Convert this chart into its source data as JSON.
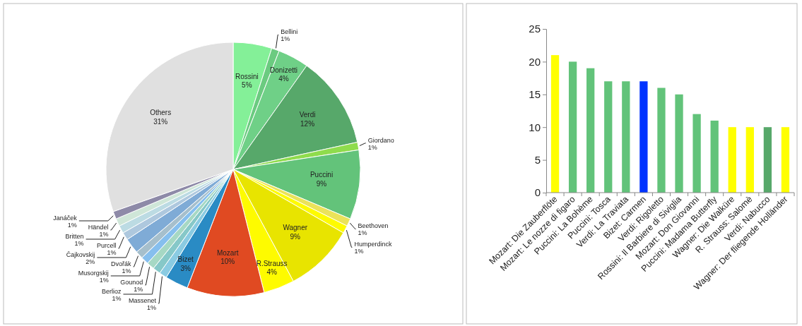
{
  "chart_data": [
    {
      "type": "pie",
      "categories": [
        "Rossini",
        "Bellini",
        "Donizetti",
        "Verdi",
        "Giordano",
        "Puccini",
        "Beethoven",
        "Humperdinck",
        "Wagner",
        "R.Strauss",
        "Mozart",
        "Bizet",
        "Massenet",
        "Berlioz",
        "Gounod",
        "Musorgskij",
        "Dvořák",
        "Čajkovskij",
        "Purcell",
        "Britten",
        "Händel",
        "Janáček",
        "Others"
      ],
      "values": [
        5,
        1,
        4,
        12,
        1,
        9,
        1,
        1,
        9,
        4,
        10,
        3,
        1,
        1,
        1,
        1,
        1,
        2,
        1,
        1,
        1,
        1,
        31
      ],
      "value_labels": [
        "5%",
        "1%",
        "4%",
        "12%",
        "1%",
        "9%",
        "1%",
        "1%",
        "9%",
        "4%",
        "10%",
        "3%",
        "1%",
        "1%",
        "1%",
        "1%",
        "1%",
        "2%",
        "1%",
        "1%",
        "1%",
        "1%",
        "31%"
      ],
      "colors": [
        "#84f098",
        "#6bcb80",
        "#6fd087",
        "#57a86a",
        "#8fdc4d",
        "#63c37a",
        "#ebe35a",
        "#fefb00",
        "#e8e400",
        "#fefb00",
        "#e04a22",
        "#2a8bc4",
        "#8acbe2",
        "#86c8c8",
        "#a6d8c4",
        "#86bfee",
        "#a6bfcc",
        "#7fabd6",
        "#aec8de",
        "#bcdbe3",
        "#cfe6d8",
        "#8e8aa8",
        "#e0e0e0"
      ]
    },
    {
      "type": "bar",
      "categories": [
        "Mozart: Die Zauberflöte",
        "Mozart: Le nozze di figaro",
        "Puccini: La Bohème",
        "Puccini: Tosca",
        "Verdi: La Traviata",
        "Bizet: Carmen",
        "Verdi: Rigoletto",
        "Rossini: Il Barbiere di Siviglia",
        "Mozart: Don Giovanni",
        "Puccini: Madama Butterfly",
        "Wagner: Die Walküre",
        "R. Strauss: Salomè",
        "Verdi: Nabucco",
        "Wagner: Der fliegende Holländer"
      ],
      "values": [
        21,
        20,
        19,
        17,
        17,
        17,
        16,
        15,
        12,
        11,
        10,
        10,
        10,
        10
      ],
      "colors": [
        "#ffff00",
        "#62c37a",
        "#62c37a",
        "#62c37a",
        "#62c37a",
        "#0033ff",
        "#62c37a",
        "#62c37a",
        "#62c37a",
        "#62c37a",
        "#ffff00",
        "#ffff00",
        "#57a86a",
        "#ffff00"
      ],
      "ylim": [
        0,
        25
      ],
      "yticks": [
        0,
        5,
        10,
        15,
        20,
        25
      ]
    }
  ]
}
